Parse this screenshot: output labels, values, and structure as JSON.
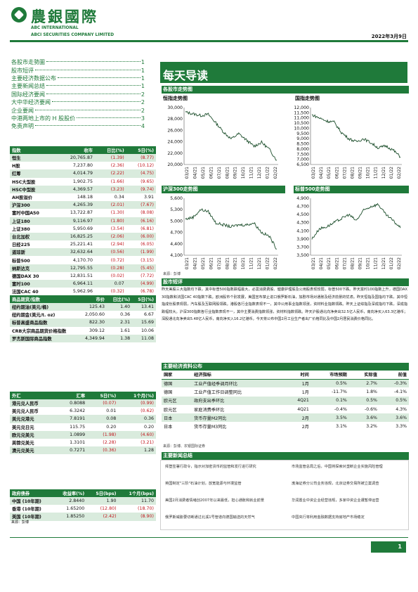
{
  "header": {
    "brand_cn": "農銀國際",
    "brand_en_1": "ABC INTERNATIONAL",
    "brand_en_2": "ABCI SECURITIES COMPANY LIMITED",
    "date": "2022年3月9日",
    "accent_color": "#1f7a3a"
  },
  "toc": [
    {
      "label": "各股市走勢圖",
      "page": "1"
    },
    {
      "label": "股市短评",
      "page": "1"
    },
    {
      "label": "主要经济数据公布",
      "page": "1"
    },
    {
      "label": "主要新闻总结",
      "page": "1"
    },
    {
      "label": "国际经济要闻",
      "page": "2"
    },
    {
      "label": "大中华经济要闻",
      "page": "2"
    },
    {
      "label": "企业要闻",
      "page": "2"
    },
    {
      "label": "中港两地上市的 H 股股价",
      "page": "3"
    },
    {
      "label": "免责声明",
      "page": "4"
    }
  ],
  "banner_title": "每天导读",
  "indices": {
    "headers": [
      "指数",
      "收市",
      "日比(%)",
      "5日(%)"
    ],
    "rows": [
      [
        "恒生",
        "20,765.87",
        "(1.39)",
        "(8.77)"
      ],
      [
        "H股",
        "7,237.80",
        "(2.36)",
        "(10.12)"
      ],
      [
        "红筹",
        "4,014.79",
        "(2.22)",
        "(4.75)"
      ],
      [
        "HSC大型股",
        "1,902.75",
        "(1.66)",
        "(9.65)"
      ],
      [
        "HSC中型股",
        "4,369.57",
        "(3.23)",
        "(9.74)"
      ],
      [
        "AH股溢价",
        "148.18",
        "0.34",
        "3.91"
      ],
      [
        "沪深300",
        "4,265.39",
        "(2.01)",
        "(7.67)"
      ],
      [
        "富时中国A50",
        "13,722.87",
        "(1.30)",
        "(8.08)"
      ],
      [
        "上证180",
        "9,116.97",
        "(1.80)",
        "(6.16)"
      ],
      [
        "上证380",
        "5,950.69",
        "(3.54)",
        "(6.81)"
      ],
      [
        "台北加权",
        "16,825.25",
        "(2.06)",
        "(6.00)"
      ],
      [
        "日经225",
        "25,221.41",
        "(2.94)",
        "(6.05)"
      ],
      [
        "道琼斯",
        "32,632.64",
        "(0.56)",
        "(1.99)"
      ],
      [
        "标普500",
        "4,170.70",
        "(0.72)",
        "(3.15)"
      ],
      [
        "纳斯达克",
        "12,795.55",
        "(0.28)",
        "(5.45)"
      ],
      [
        "德国DAX 30",
        "12,831.51",
        "(0.02)",
        "(7.72)"
      ],
      [
        "富时100",
        "6,964.11",
        "0.07",
        "(4.99)"
      ],
      [
        "法国CAC 40",
        "5,962.96",
        "(0.32)",
        "(6.78)"
      ]
    ]
  },
  "commodities": {
    "headers": [
      "商品期货/指数",
      "市价",
      "日比(%)",
      "5日(%)"
    ],
    "rows": [
      [
        "纽约期油(美元/桶)",
        "125.43",
        "1.40",
        "13.41"
      ],
      [
        "纽约期金(美元/t. oz)",
        "2,050.60",
        "0.36",
        "6.67"
      ],
      [
        "标普高盛商品指数",
        "822.30",
        "2.31",
        "15.69"
      ],
      [
        "CRB大宗商品期货价格指数",
        "309.12",
        "1.61",
        "10.06"
      ],
      [
        "罗杰斯国际商品指数",
        "4,349.94",
        "1.38",
        "11.08"
      ]
    ]
  },
  "fx": {
    "headers": [
      "外汇",
      "汇率",
      "5日(%)",
      "1个月(%)"
    ],
    "rows": [
      [
        "港元兑人民币",
        "0.8088",
        "(0.07)",
        "(0.99)"
      ],
      [
        "美元兑人民币",
        "6.3242",
        "0.01",
        "(0.62)"
      ],
      [
        "美元兑港元",
        "7.8191",
        "0.08",
        "0.36"
      ],
      [
        "美元兑日元",
        "115.75",
        "0.20",
        "0.20"
      ],
      [
        "欧元兑美元",
        "1.0899",
        "(1.98)",
        "(4.60)"
      ],
      [
        "英镑兑美元",
        "1.3101",
        "(2.28)",
        "(3.21)"
      ],
      [
        "澳元兑美元",
        "0.7271",
        "(0.36)",
        "1.28"
      ]
    ]
  },
  "bonds": {
    "headers": [
      "政府债券",
      "收益率(%)",
      "5日(bps)",
      "1个月(bps)"
    ],
    "rows": [
      [
        "中国 (10年期)",
        "2.8440",
        "1.90",
        "11.70"
      ],
      [
        "香港 (10年期)",
        "1.65200",
        "(12.80)",
        "(18.70)"
      ],
      [
        "美国 (10年期)",
        "1.85250",
        "(2.42)",
        "(8.90)"
      ]
    ],
    "source": "来源：彭博"
  },
  "charts": {
    "section_title": "各股市走势图",
    "source": "来源：彭博",
    "hsi": {
      "title": "恒指走势图",
      "yticks": [
        "30,000",
        "28,000",
        "26,000",
        "24,000",
        "22,000",
        "20,000"
      ],
      "ylim": [
        20000,
        30000
      ],
      "xticks": [
        "03/21",
        "04/21",
        "05/21",
        "06/21",
        "07/21",
        "08/21",
        "09/21",
        "10/21",
        "11/21",
        "12/21",
        "01/22",
        "02/22"
      ]
    },
    "hscei": {
      "title": "国指走势图",
      "yticks": [
        "12,000",
        "11,500",
        "11,000",
        "10,500",
        "10,000",
        "9,500",
        "9,000",
        "8,500",
        "8,000",
        "7,500",
        "7,000",
        "6,500"
      ],
      "ylim": [
        6500,
        12000
      ],
      "xticks": [
        "03/21",
        "04/21",
        "05/21",
        "06/21",
        "07/21",
        "08/21",
        "09/21",
        "10/21",
        "11/21",
        "12/21",
        "01/22",
        "02/22"
      ]
    },
    "csi300": {
      "title": "沪深300走势图",
      "yticks": [
        "5,600",
        "5,300",
        "5,000",
        "4,700",
        "4,400",
        "4,100"
      ],
      "ylim": [
        4100,
        5600
      ],
      "xticks": [
        "03/21",
        "04/21",
        "05/21",
        "06/21",
        "07/21",
        "08/21",
        "09/21",
        "10/21",
        "11/21",
        "12/21",
        "01/22",
        "02/22"
      ]
    },
    "spx": {
      "title": "标普500走势图",
      "yticks": [
        "4,900",
        "4,700",
        "4,500",
        "4,300",
        "4,100",
        "3,900",
        "3,700",
        "3,500"
      ],
      "ylim": [
        3500,
        4900
      ],
      "xticks": [
        "03/21",
        "04/21",
        "05/21",
        "06/21",
        "07/21",
        "08/21",
        "09/21",
        "10/21",
        "11/21",
        "12/21",
        "01/22",
        "02/22"
      ]
    }
  },
  "chart_data": [
    {
      "type": "line",
      "title": "恒指走势图",
      "ylim": [
        20000,
        30000
      ],
      "x": [
        "03/21",
        "04/21",
        "05/21",
        "06/21",
        "07/21",
        "08/21",
        "09/21",
        "10/21",
        "11/21",
        "12/21",
        "01/22",
        "02/22",
        "03/22"
      ],
      "values": [
        29200,
        28900,
        28600,
        28800,
        27300,
        25700,
        24500,
        25400,
        24300,
        23200,
        23900,
        22700,
        20766
      ]
    },
    {
      "type": "line",
      "title": "国指走势图",
      "ylim": [
        6500,
        12000
      ],
      "x": [
        "03/21",
        "04/21",
        "05/21",
        "06/21",
        "07/21",
        "08/21",
        "09/21",
        "10/21",
        "11/21",
        "12/21",
        "01/22",
        "02/22",
        "03/22"
      ],
      "values": [
        11300,
        11000,
        10700,
        10600,
        9600,
        9000,
        8700,
        9000,
        8600,
        8100,
        8300,
        7900,
        7238
      ]
    },
    {
      "type": "line",
      "title": "沪深300走势图",
      "ylim": [
        4100,
        5600
      ],
      "x": [
        "03/21",
        "04/21",
        "05/21",
        "06/21",
        "07/21",
        "08/21",
        "09/21",
        "10/21",
        "11/21",
        "12/21",
        "01/22",
        "02/22",
        "03/22"
      ],
      "values": [
        5050,
        5100,
        5300,
        5250,
        4950,
        4900,
        4850,
        4900,
        4900,
        4950,
        4700,
        4600,
        4265
      ]
    },
    {
      "type": "line",
      "title": "标普500走势图",
      "ylim": [
        3500,
        4900
      ],
      "x": [
        "03/21",
        "04/21",
        "05/21",
        "06/21",
        "07/21",
        "08/21",
        "09/21",
        "10/21",
        "11/21",
        "12/21",
        "01/22",
        "02/22",
        "03/22"
      ],
      "values": [
        3900,
        4150,
        4200,
        4300,
        4400,
        4500,
        4350,
        4600,
        4700,
        4750,
        4500,
        4350,
        4171
      ]
    }
  ],
  "commentary": {
    "title": "股市短评",
    "text": "昨天美股三大指数均下跌，其中标普500指数跌幅最大，必需消费费股、健康护理股及公用股表现较弱，标普500下跌。昨天富时100指数上升，德国DAX 30指数和法国CAC 40指数下跌。欧洲股市个别发展，美国宣布禁止进口俄罗斯石油，加剧市场对通胀及经济前景的忧虑。昨天恒指及国指均下跌，其中恒指成份股表现弱，汽车股及互联网股领跌。港股各行业指数表现不一，其中公用事业指数领涨，资材料业指数领跌。昨天上证综指及深成指均下跌，深成指跌幅较大。沪深300指数各行业指数表现不一，其中主要消费指数领涨，资材料指数领跌。昨天沪股通北向净卖出32.5亿人民币，南向净买入63.3亿港币；深股通北向净卖出5.48亿人民币，南向净买入16.2亿港币。今天将公布中国2月工业生产者出厂价格同比及中国2月居民消费价格同比。"
  },
  "econ": {
    "title": "主要经济资料公布",
    "headers": [
      "国家",
      "经济指标",
      "时间",
      "市场预期",
      "实际值",
      "前值"
    ],
    "rows": [
      [
        "德国",
        "工业产值经季调月环比",
        "1月",
        "0.5%",
        "2.7%",
        "-0.3%"
      ],
      [
        "德国",
        "工业产值工作日调整同比",
        "1月",
        "-11.7%",
        "1.8%",
        "-4.1%"
      ],
      [
        "欧元区",
        "政府支出季环比",
        "4Q21",
        "0.1%",
        "0.5%",
        "0.5%"
      ],
      [
        "欧元区",
        "家庭消费季环比",
        "4Q21",
        "-0.4%",
        "-0.6%",
        "4.3%"
      ],
      [
        "日本",
        "货币存量M2同比",
        "2月",
        "3.5%",
        "3.6%",
        "3.6%"
      ],
      [
        "日本",
        "货币存量M3同比",
        "2月",
        "3.1%",
        "3.2%",
        "3.3%"
      ]
    ],
    "source": "来源：彭博、农银国际证券"
  },
  "news": {
    "title": "主要新闻总结",
    "left": [
      "拜登签署行政令，指示对加密货币的监管和发行进行研究",
      "英国制定\"三阶\"石油计划，放宽能源与环境监管",
      "美国2月消费者情绪创2007年以来最低，担心通胀和就业前景",
      "俄罗斯威胁要切断通过北溪1号管道向德国输送的天然气"
    ],
    "right": [
      "市场监管总局之后，中国将探索对垄断企业实施风险管理",
      "渤海证券分公司业务违规，北京证券交易所被立案调查",
      "华润置业中资企业经营违规，多家中资企业遭暂停运营",
      "中国央行将利用金融数据支持房地产市场稳定"
    ]
  },
  "page_number": "1"
}
